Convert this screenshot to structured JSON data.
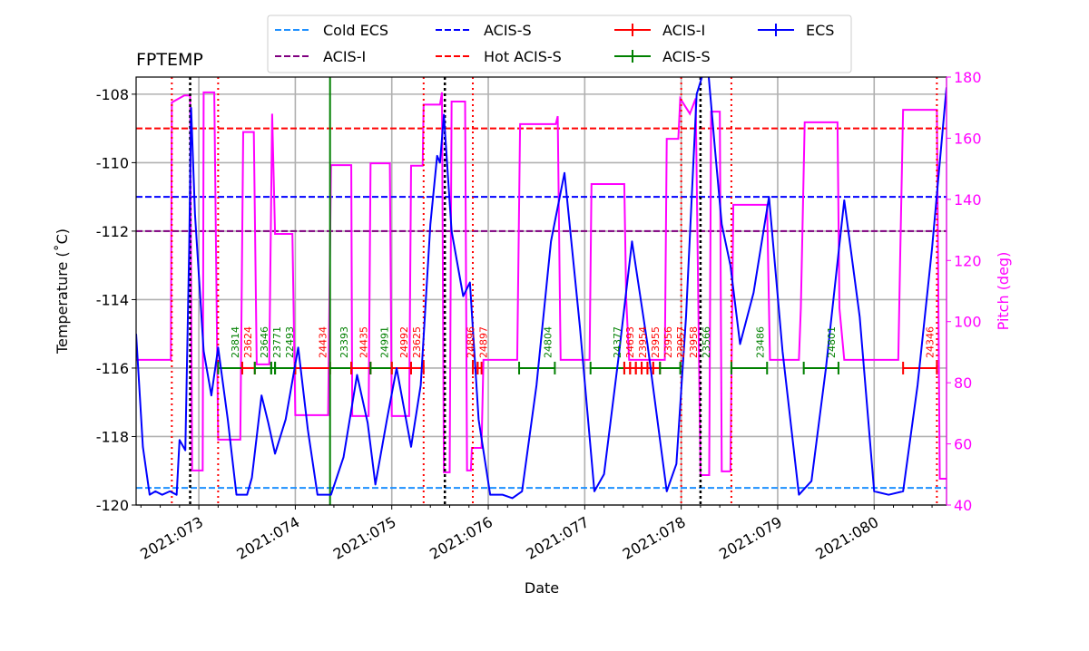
{
  "chart_data": {
    "type": "line",
    "title": "FPTEMP",
    "xlabel": "Date",
    "ylabel": "Temperature ($^\\circ$C)",
    "ylabel_display": "Temperature (˚C)",
    "y2label": "Pitch (deg)",
    "xlim": [
      72.35,
      80.75
    ],
    "ylim": [
      -120,
      -107.5
    ],
    "y2lim": [
      40,
      180
    ],
    "grid": true,
    "legend_position": "top-center",
    "xticks": [
      {
        "v": 73,
        "label": "2021:073"
      },
      {
        "v": 74,
        "label": "2021:074"
      },
      {
        "v": 75,
        "label": "2021:075"
      },
      {
        "v": 76,
        "label": "2021:076"
      },
      {
        "v": 77,
        "label": "2021:077"
      },
      {
        "v": 78,
        "label": "2021:078"
      },
      {
        "v": 79,
        "label": "2021:079"
      },
      {
        "v": 80,
        "label": "2021:080"
      }
    ],
    "yticks": [
      -120,
      -118,
      -116,
      -114,
      -112,
      -110,
      -108
    ],
    "y2ticks": [
      40,
      60,
      80,
      100,
      120,
      140,
      160,
      180
    ],
    "limits": [
      {
        "name": "Cold ECS",
        "value": -119.5,
        "color": "#1e90ff"
      },
      {
        "name": "ACIS-I",
        "value": -112,
        "color": "#800080"
      },
      {
        "name": "ACIS-S",
        "value": -111,
        "color": "#0000ff"
      },
      {
        "name": "Hot ACIS-S",
        "value": -109,
        "color": "#ff0000"
      }
    ],
    "legend": [
      {
        "label": "Cold ECS",
        "style": "dashed",
        "color": "#1e90ff"
      },
      {
        "label": "ACIS-I",
        "style": "dashed",
        "color": "#800080"
      },
      {
        "label": "ACIS-S",
        "style": "dashed",
        "color": "#0000ff"
      },
      {
        "label": "Hot ACIS-S",
        "style": "dashed",
        "color": "#ff0000"
      },
      {
        "label": "ACIS-I",
        "style": "errorbar",
        "color": "#ff0000"
      },
      {
        "label": "ACIS-S",
        "style": "errorbar",
        "color": "#008000"
      },
      {
        "label": "ECS",
        "style": "errorbar",
        "color": "#0000ff"
      }
    ],
    "temperature": {
      "name": "FPTEMP",
      "color": "#0000ff",
      "x": [
        72.35,
        72.42,
        72.49,
        72.55,
        72.62,
        72.7,
        72.77,
        72.8,
        72.86,
        72.9,
        72.92,
        72.96,
        73.05,
        73.13,
        73.2,
        73.3,
        73.39,
        73.5,
        73.55,
        73.65,
        73.72,
        73.79,
        73.9,
        74.03,
        74.13,
        74.23,
        74.37,
        74.5,
        74.64,
        74.75,
        74.83,
        74.95,
        75.05,
        75.2,
        75.3,
        75.4,
        75.47,
        75.5,
        75.54,
        75.62,
        75.74,
        75.81,
        75.9,
        76.02,
        76.15,
        76.25,
        76.35,
        76.5,
        76.65,
        76.79,
        76.95,
        77.1,
        77.2,
        77.35,
        77.49,
        77.65,
        77.85,
        77.95,
        78.05,
        78.16,
        78.27,
        78.35,
        78.42,
        78.51,
        78.61,
        78.75,
        78.91,
        79.05,
        79.22,
        79.35,
        79.5,
        79.69,
        79.85,
        80.0,
        80.15,
        80.3,
        80.45,
        80.6,
        80.75
      ],
      "y": [
        -115.0,
        -118.3,
        -119.7,
        -119.6,
        -119.7,
        -119.6,
        -119.7,
        -118.1,
        -118.4,
        -112.5,
        -108.4,
        -111.5,
        -115.5,
        -116.8,
        -115.4,
        -117.5,
        -119.7,
        -119.7,
        -119.2,
        -116.8,
        -117.6,
        -118.5,
        -117.5,
        -115.4,
        -117.8,
        -119.7,
        -119.7,
        -118.6,
        -116.2,
        -117.6,
        -119.4,
        -117.5,
        -116.0,
        -118.3,
        -116.5,
        -111.8,
        -109.8,
        -110.0,
        -108.6,
        -112.0,
        -113.9,
        -113.5,
        -117.5,
        -119.7,
        -119.7,
        -119.8,
        -119.6,
        -116.5,
        -112.3,
        -110.3,
        -114.8,
        -119.6,
        -119.1,
        -115.7,
        -112.3,
        -115.3,
        -119.6,
        -118.8,
        -114.5,
        -108.0,
        -107.0,
        -109.6,
        -111.8,
        -113.0,
        -115.3,
        -113.8,
        -111.0,
        -115.5,
        -119.7,
        -119.3,
        -116.0,
        -111.1,
        -114.5,
        -119.6,
        -119.7,
        -119.6,
        -116.5,
        -112.5,
        -107.8
      ]
    },
    "pitch": {
      "name": "Pitch",
      "color": "#ff00ff",
      "x": [
        72.35,
        72.71,
        72.72,
        72.85,
        72.91,
        72.93,
        73.04,
        73.05,
        73.16,
        73.2,
        73.43,
        73.46,
        73.57,
        73.6,
        73.73,
        73.76,
        73.79,
        73.97,
        74.0,
        74.34,
        74.37,
        74.58,
        74.59,
        74.76,
        74.78,
        74.98,
        75.0,
        75.18,
        75.2,
        75.32,
        75.33,
        75.5,
        75.52,
        75.54,
        75.6,
        75.62,
        75.76,
        75.78,
        75.82,
        75.83,
        75.93,
        75.95,
        76.3,
        76.33,
        76.7,
        76.72,
        76.75,
        77.05,
        77.07,
        77.41,
        77.43,
        77.46,
        77.83,
        77.85,
        77.97,
        77.99,
        78.09,
        78.15,
        78.2,
        78.29,
        78.31,
        78.4,
        78.42,
        78.51,
        78.54,
        78.89,
        78.92,
        79.22,
        79.24,
        79.28,
        79.62,
        79.64,
        79.69,
        80.25,
        80.27,
        80.3,
        80.65,
        80.68,
        80.75
      ],
      "y": [
        87.5,
        87.5,
        171.7,
        174,
        174,
        51.3,
        51.3,
        175,
        175,
        61.4,
        61.4,
        162,
        162,
        86,
        86,
        168,
        128.7,
        128.7,
        69.4,
        69.4,
        151.2,
        151.2,
        69.1,
        69.1,
        151.8,
        151.8,
        69.1,
        69.1,
        151,
        151,
        171,
        171,
        175,
        50.7,
        50.7,
        172,
        172,
        51.3,
        51.3,
        58.7,
        58.7,
        87.5,
        87.5,
        164.6,
        164.6,
        167.2,
        87.5,
        87.5,
        145,
        145,
        107.3,
        87.5,
        87.5,
        159.8,
        159.8,
        173,
        168,
        173,
        49.8,
        49.8,
        168.7,
        168.7,
        51,
        51,
        138.2,
        138.2,
        87.5,
        87.5,
        104.4,
        165.2,
        165.2,
        104.4,
        87.5,
        87.5,
        121.6,
        169.3,
        169.3,
        48.6,
        48.6
      ]
    },
    "vlines": [
      {
        "x": 72.72,
        "style": "red-dotted"
      },
      {
        "x": 73.2,
        "style": "red-dotted"
      },
      {
        "x": 75.33,
        "style": "red-dotted"
      },
      {
        "x": 75.84,
        "style": "red-dotted"
      },
      {
        "x": 78.0,
        "style": "red-dotted"
      },
      {
        "x": 78.52,
        "style": "red-dotted"
      },
      {
        "x": 80.65,
        "style": "red-dotted"
      },
      {
        "x": 72.91,
        "style": "black-dotted"
      },
      {
        "x": 75.55,
        "style": "black-dotted"
      },
      {
        "x": 78.2,
        "style": "black-dotted"
      },
      {
        "x": 74.36,
        "style": "green-solid"
      }
    ],
    "obsids": {
      "level": -116,
      "items": [
        {
          "id": "23814",
          "start": 73.2,
          "end": 73.45,
          "inst": "ACIS-S"
        },
        {
          "id": "23624",
          "start": 73.45,
          "end": 73.58,
          "inst": "ACIS-I"
        },
        {
          "id": "23646",
          "start": 73.58,
          "end": 73.75,
          "inst": "ACIS-S"
        },
        {
          "id": "23771",
          "start": 73.75,
          "end": 73.79,
          "inst": "ACIS-S"
        },
        {
          "id": "22493",
          "start": 73.79,
          "end": 74.0,
          "inst": "ACIS-S"
        },
        {
          "id": "24434",
          "start": 74.0,
          "end": 74.36,
          "inst": "ACIS-I"
        },
        {
          "id": "23393",
          "start": 74.36,
          "end": 74.58,
          "inst": "ACIS-S"
        },
        {
          "id": "24435",
          "start": 74.58,
          "end": 74.78,
          "inst": "ACIS-I"
        },
        {
          "id": "24991",
          "start": 74.78,
          "end": 75.0,
          "inst": "ACIS-S"
        },
        {
          "id": "24992",
          "start": 75.0,
          "end": 75.2,
          "inst": "ACIS-I"
        },
        {
          "id": "23625",
          "start": 75.2,
          "end": 75.33,
          "inst": "ACIS-I"
        },
        {
          "id": "24896",
          "start": 75.84,
          "end": 75.89,
          "inst": "ACIS-I"
        },
        {
          "id": "24897",
          "start": 75.89,
          "end": 75.93,
          "inst": "ACIS-I"
        },
        {
          "id": "24804",
          "start": 76.32,
          "end": 76.69,
          "inst": "ACIS-S"
        },
        {
          "id": "24377",
          "start": 77.06,
          "end": 77.41,
          "inst": "ACIS-S"
        },
        {
          "id": "24693",
          "start": 77.41,
          "end": 77.47,
          "inst": "ACIS-I"
        },
        {
          "id": "23954",
          "start": 77.47,
          "end": 77.53,
          "inst": "ACIS-I"
        },
        {
          "id": "23955",
          "start": 77.53,
          "end": 77.59,
          "inst": "ACIS-I"
        },
        {
          "id": "23956",
          "start": 77.59,
          "end": 77.65,
          "inst": "ACIS-I"
        },
        {
          "id": "23957",
          "start": 77.65,
          "end": 77.71,
          "inst": "ACIS-I"
        },
        {
          "id": "23958",
          "start": 77.71,
          "end": 77.78,
          "inst": "ACIS-I"
        },
        {
          "id": "23566",
          "start": 77.78,
          "end": 77.99,
          "inst": "ACIS-S"
        },
        {
          "id": "23486",
          "start": 78.52,
          "end": 78.89,
          "inst": "ACIS-S"
        },
        {
          "id": "24801",
          "start": 79.27,
          "end": 79.63,
          "inst": "ACIS-S"
        },
        {
          "id": "24346",
          "start": 80.3,
          "end": 80.65,
          "inst": "ACIS-I"
        }
      ]
    }
  }
}
